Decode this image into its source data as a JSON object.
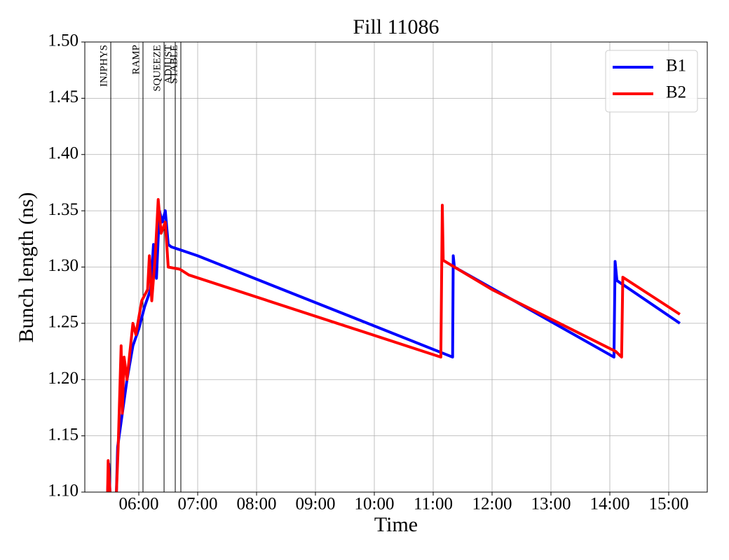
{
  "chart_data": {
    "type": "line",
    "title": "Fill 11086",
    "x_label": "Time",
    "y_label": "Bunch length (ns)",
    "xlim": [
      5.083,
      15.655
    ],
    "ylim": [
      1.1,
      1.5
    ],
    "xticks": [
      {
        "value": 6,
        "label": "06:00"
      },
      {
        "value": 7,
        "label": "07:00"
      },
      {
        "value": 8,
        "label": "08:00"
      },
      {
        "value": 9,
        "label": "09:00"
      },
      {
        "value": 10,
        "label": "10:00"
      },
      {
        "value": 11,
        "label": "11:00"
      },
      {
        "value": 12,
        "label": "12:00"
      },
      {
        "value": 13,
        "label": "13:00"
      },
      {
        "value": 14,
        "label": "14:00"
      },
      {
        "value": 15,
        "label": "15:00"
      }
    ],
    "yticks": [
      {
        "value": 1.1,
        "label": "1.10"
      },
      {
        "value": 1.15,
        "label": "1.15"
      },
      {
        "value": 1.2,
        "label": "1.20"
      },
      {
        "value": 1.25,
        "label": "1.25"
      },
      {
        "value": 1.3,
        "label": "1.30"
      },
      {
        "value": 1.35,
        "label": "1.35"
      },
      {
        "value": 1.4,
        "label": "1.40"
      },
      {
        "value": 1.45,
        "label": "1.45"
      },
      {
        "value": 1.5,
        "label": "1.50"
      }
    ],
    "grid": true,
    "legend": "upper right",
    "phases": [
      {
        "name": "INJPHYS",
        "x": 5.524
      },
      {
        "name": "RAMP",
        "x": 6.071
      },
      {
        "name": "SQUEEZE",
        "x": 6.429
      },
      {
        "name": "ADJUST",
        "x": 6.619
      },
      {
        "name": "STABLE",
        "x": 6.714
      }
    ],
    "series": [
      {
        "name": "B1",
        "color": "#0000ff",
        "x": [
          5.47,
          5.49,
          5.51,
          null,
          5.62,
          5.64,
          5.72,
          5.8,
          5.9,
          6.0,
          6.1,
          6.2,
          6.25,
          6.3,
          6.35,
          6.4,
          6.45,
          6.5,
          6.55,
          7.0,
          11.33,
          11.34,
          11.36,
          14.07,
          14.09,
          14.12,
          15.19
        ],
        "values": [
          1.1,
          1.125,
          1.1,
          null,
          1.1,
          1.14,
          1.17,
          1.2,
          1.23,
          1.245,
          1.265,
          1.28,
          1.32,
          1.29,
          1.35,
          1.34,
          1.35,
          1.32,
          1.318,
          1.31,
          1.22,
          1.31,
          1.3,
          1.22,
          1.305,
          1.288,
          1.25
        ]
      },
      {
        "name": "B2",
        "color": "#ff0000",
        "x": [
          5.47,
          5.48,
          5.51,
          null,
          5.62,
          5.65,
          5.7,
          5.72,
          5.75,
          5.8,
          5.9,
          5.95,
          6.05,
          6.15,
          6.18,
          6.22,
          6.28,
          6.33,
          6.38,
          6.45,
          6.5,
          6.7,
          6.85,
          11.13,
          11.155,
          11.17,
          12.0,
          14.1,
          14.2,
          14.22,
          15.19
        ],
        "values": [
          1.1,
          1.128,
          1.1,
          null,
          1.1,
          1.14,
          1.23,
          1.17,
          1.22,
          1.2,
          1.25,
          1.24,
          1.27,
          1.28,
          1.31,
          1.27,
          1.31,
          1.36,
          1.33,
          1.34,
          1.3,
          1.298,
          1.293,
          1.22,
          1.355,
          1.306,
          1.28,
          1.225,
          1.22,
          1.291,
          1.258
        ]
      }
    ]
  }
}
